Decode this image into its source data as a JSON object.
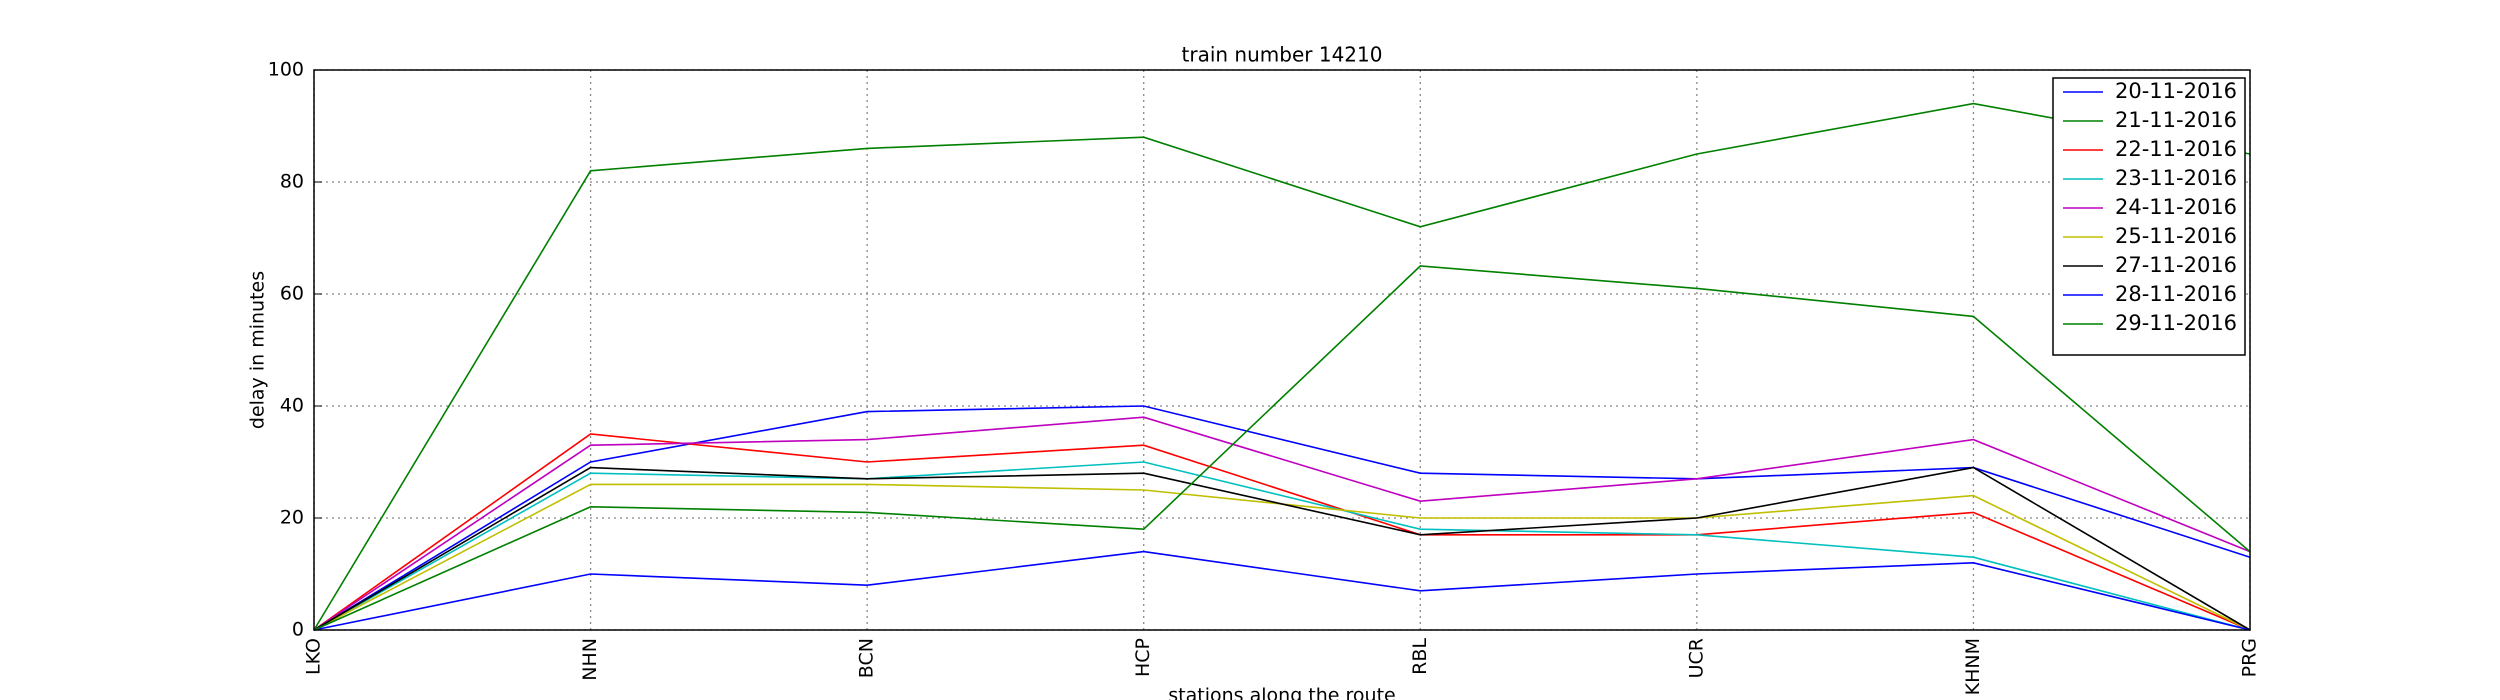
{
  "chart_data": {
    "type": "line",
    "title": "train number 14210",
    "x_label": "stations along the route",
    "y_label": "delay in minutes",
    "categories": [
      "LKO",
      "NHN",
      "BCN",
      "HCP",
      "RBL",
      "UCR",
      "KHNM",
      "PRG"
    ],
    "series": [
      {
        "name": "20-11-2016",
        "color": "#0000ff",
        "values": [
          0,
          30,
          39,
          40,
          28,
          27,
          29,
          13
        ]
      },
      {
        "name": "21-11-2016",
        "color": "#008000",
        "values": [
          0,
          82,
          86,
          88,
          72,
          85,
          94,
          85
        ]
      },
      {
        "name": "22-11-2016",
        "color": "#ff0000",
        "values": [
          0,
          35,
          30,
          33,
          17,
          17,
          21,
          0
        ]
      },
      {
        "name": "23-11-2016",
        "color": "#00bfbf",
        "values": [
          0,
          28,
          27,
          30,
          18,
          17,
          13,
          0
        ]
      },
      {
        "name": "24-11-2016",
        "color": "#bf00bf",
        "values": [
          0,
          33,
          34,
          38,
          23,
          27,
          34,
          14
        ]
      },
      {
        "name": "25-11-2016",
        "color": "#bfbf00",
        "values": [
          0,
          26,
          26,
          25,
          20,
          20,
          24,
          0
        ]
      },
      {
        "name": "27-11-2016",
        "color": "#000000",
        "values": [
          0,
          29,
          27,
          28,
          17,
          20,
          29,
          0
        ]
      },
      {
        "name": "28-11-2016",
        "color": "#0000ff",
        "values": [
          0,
          10,
          8,
          14,
          7,
          10,
          12,
          0
        ]
      },
      {
        "name": "29-11-2016",
        "color": "#008000",
        "values": [
          0,
          22,
          21,
          18,
          65,
          61,
          56,
          14
        ]
      }
    ],
    "ylim": [
      0,
      100
    ],
    "yticks": [
      0,
      20,
      40,
      60,
      80,
      100
    ],
    "grid": true,
    "legend": "upper right"
  }
}
